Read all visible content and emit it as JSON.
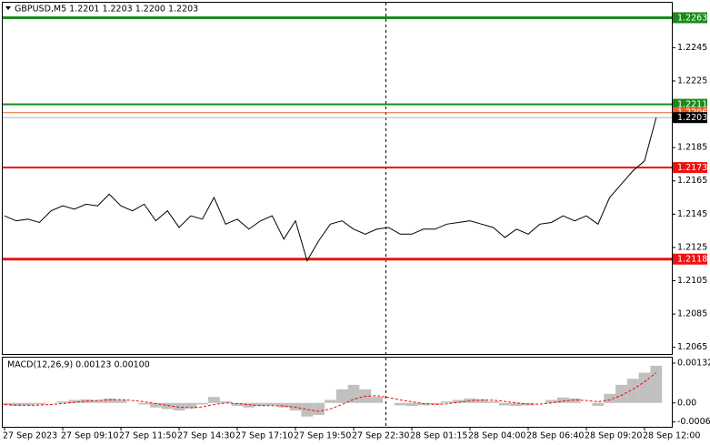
{
  "chart_data": [
    {
      "type": "line",
      "title": "GBPUSD,M5  1.2201 1.2203 1.2200 1.2203",
      "categories": [
        "27 Sep 2023",
        null,
        null,
        null,
        null,
        "27 Sep 09:10",
        null,
        null,
        null,
        null,
        "27 Sep 11:50",
        null,
        null,
        null,
        null,
        "27 Sep 14:30",
        null,
        null,
        null,
        null,
        "27 Sep 17:10",
        null,
        null,
        null,
        null,
        "27 Sep 19:50",
        null,
        null,
        null,
        null,
        "27 Sep 22:30",
        null,
        null,
        null,
        null,
        "28 Sep 01:15",
        null,
        null,
        null,
        null,
        "28 Sep 04:00",
        null,
        null,
        null,
        null,
        "28 Sep 06:40",
        null,
        null,
        null,
        null,
        "28 Sep 09:20",
        null,
        null,
        null,
        null,
        "28 Sep 12:00",
        null
      ],
      "values": [
        1.2144,
        1.2141,
        1.2142,
        1.214,
        1.2147,
        1.215,
        1.2148,
        1.2151,
        1.215,
        1.2157,
        1.215,
        1.2147,
        1.2151,
        1.2141,
        1.2147,
        1.2137,
        1.2144,
        1.2142,
        1.2155,
        1.2139,
        1.2142,
        1.2136,
        1.2141,
        1.2144,
        1.213,
        1.2141,
        1.2117,
        1.2129,
        1.2139,
        1.2141,
        1.2136,
        1.2133,
        1.2136,
        1.2137,
        1.2133,
        1.2133,
        1.2136,
        1.2136,
        1.2139,
        1.214,
        1.2141,
        1.2139,
        1.2137,
        1.2131,
        1.2136,
        1.2133,
        1.2139,
        1.214,
        1.2144,
        1.2141,
        1.2144,
        1.2139,
        1.2155,
        1.2163,
        1.2171,
        1.2177,
        1.2203
      ],
      "color": "#000000",
      "ylim": [
        1.2061,
        1.2272
      ],
      "yticks": [
        1.2065,
        1.2085,
        1.2105,
        1.2125,
        1.2145,
        1.2165,
        1.2185,
        1.2225,
        1.2245
      ],
      "levels": [
        {
          "value": 1.2263,
          "color": "#1b8a1b",
          "width": 3
        },
        {
          "value": 1.2211,
          "color": "#1b8a1b",
          "width": 2
        },
        {
          "value": 1.2206,
          "color": "#e8602c",
          "width": 1
        },
        {
          "value": 1.2203,
          "color": "#000000",
          "width": 1
        },
        {
          "value": 1.2173,
          "color": "#ee1111",
          "width": 2
        },
        {
          "value": 1.2118,
          "color": "#ee1111",
          "width": 3
        }
      ]
    },
    {
      "type": "bar",
      "title": "MACD(12,26,9) 0.00123 0.00100",
      "series": [
        {
          "color": "#c0c0c0",
          "values": [
            -8e-05,
            -0.0001,
            -8e-05,
            -5e-05,
            0,
            5e-05,
            0.0001,
            0.00012,
            0.0001,
            0.00015,
            0.0001,
            0,
            -5e-05,
            -0.00015,
            -0.0002,
            -0.00025,
            -0.00018,
            -5e-05,
            0.0002,
            5e-05,
            -0.0001,
            -0.00015,
            -0.0001,
            -8e-05,
            -0.00015,
            -0.00025,
            -0.00045,
            -0.0004,
            0.0001,
            0.00045,
            0.0006,
            0.00045,
            0.0002,
            0,
            -8e-05,
            -0.0001,
            -8e-05,
            -5e-05,
            5e-05,
            0.0001,
            0.00015,
            0.00012,
            5e-05,
            -8e-05,
            -0.0001,
            -8e-05,
            0,
            0.0001,
            0.00018,
            0.00015,
            0,
            -0.0001,
            0.0003,
            0.0006,
            0.0008,
            0.001,
            0.00123
          ]
        },
        {
          "color": "#ff0000",
          "style": "dashed",
          "values": [
            -5e-05,
            -7e-05,
            -8e-05,
            -7e-05,
            -5e-05,
            -2e-05,
            2e-05,
            6e-05,
            8e-05,
            0.0001,
            0.00011,
            8e-05,
            4e-05,
            -2e-05,
            -8e-05,
            -0.00014,
            -0.00016,
            -0.00013,
            -5e-05,
            0,
            -2e-05,
            -6e-05,
            -9e-05,
            -9e-05,
            -0.0001,
            -0.00014,
            -0.00022,
            -0.00028,
            -0.0002,
            -5e-05,
            0.00012,
            0.00022,
            0.00024,
            0.00018,
            0.0001,
            4e-05,
            -2e-05,
            -5e-05,
            -3e-05,
            2e-05,
            7e-05,
            0.0001,
            9e-05,
            5e-05,
            0,
            -4e-05,
            -4e-05,
            0,
            6e-05,
            0.0001,
            8e-05,
            4e-05,
            0.0001,
            0.00025,
            0.00045,
            0.0007,
            0.001
          ]
        }
      ],
      "ylim": [
        -0.00079,
        0.0015
      ],
      "yticks": [
        0.00132,
        {
          "value": 0,
          "label": "0.00"
        },
        -0.00063
      ]
    }
  ]
}
